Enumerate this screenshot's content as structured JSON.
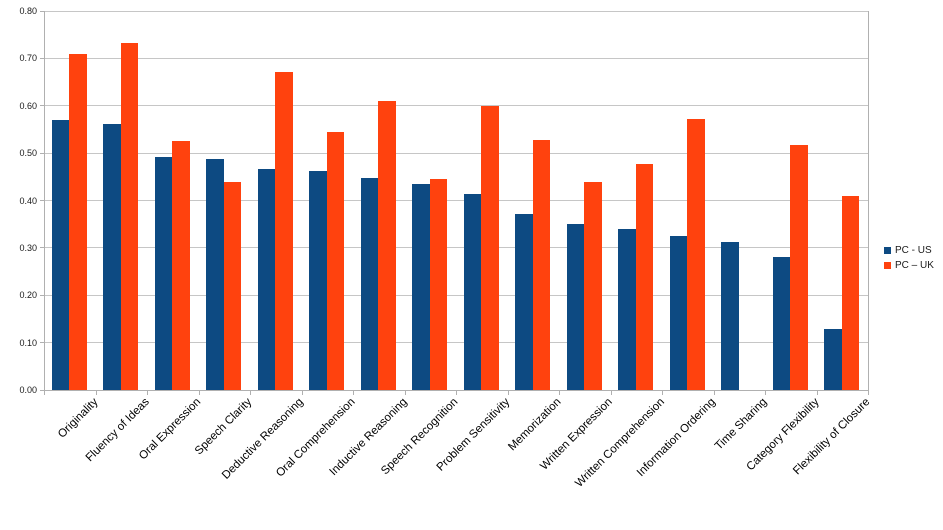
{
  "chart_data": {
    "type": "bar",
    "title": "",
    "xlabel": "",
    "ylabel": "",
    "categories": [
      "Originality",
      "Fluency of Ideas",
      "Oral Expression",
      "Speech Clarity",
      "Deductive Reasoning",
      "Oral Comprehension",
      "Inductive Reasoning",
      "Speech Recognition",
      "Problem Sensitivity",
      "Memorization",
      "Written Expression",
      "Written Comprehension",
      "Information Ordering",
      "Time Sharing",
      "Category Flexibility",
      "Flexibility of Closure"
    ],
    "series": [
      {
        "name": "PC - US",
        "color": "#0d4a82",
        "values": [
          0.57,
          0.561,
          0.491,
          0.488,
          0.466,
          0.463,
          0.447,
          0.435,
          0.413,
          0.371,
          0.35,
          0.339,
          0.326,
          0.312,
          0.28,
          0.128
        ]
      },
      {
        "name": "PC – UK",
        "color": "#ff420e",
        "values": [
          0.71,
          0.733,
          0.525,
          0.439,
          0.671,
          0.544,
          0.609,
          0.445,
          0.599,
          0.528,
          0.438,
          0.478,
          0.573,
          null,
          0.518,
          0.41
        ]
      }
    ],
    "ylim": [
      0.0,
      0.8
    ],
    "ytick_step": 0.1,
    "ytick_labels": [
      "0.00",
      "0.10",
      "0.20",
      "0.30",
      "0.40",
      "0.50",
      "0.60",
      "0.70",
      "0.80"
    ],
    "grid": true,
    "legend_position": "right",
    "background_color": "#ffffff",
    "gridline_color": "#c6c6c6",
    "axis_color": "#b0b0b0"
  }
}
